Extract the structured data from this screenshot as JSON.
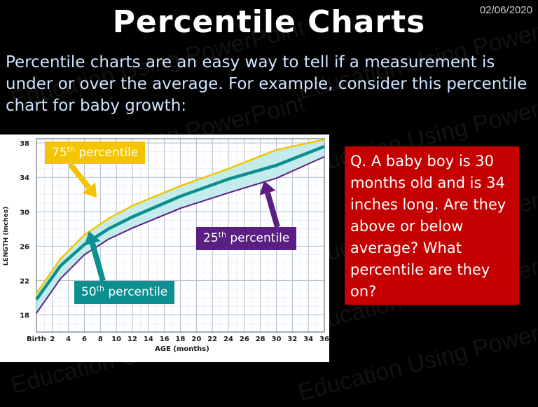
{
  "date": "02/06/2020",
  "title": "Percentile Charts",
  "intro": "Percentile charts are an easy way to tell if a measurement is under or over the average.  For example, consider this percentile chart for baby growth:",
  "watermark": "Education Using PowerPoint",
  "question": "Q. A baby boy is 30 months old and is 34 inches long. Are they above or below average? What percentile are they on?",
  "callouts": {
    "p75": {
      "num": "75",
      "sup": "th",
      "text": " percentile"
    },
    "p50": {
      "num": "50",
      "sup": "th",
      "text": " percentile"
    },
    "p25": {
      "num": "25",
      "sup": "th",
      "text": " percentile"
    }
  },
  "colors": {
    "p75": "#f5c400",
    "p50": "#0e8f8f",
    "p25": "#5b1e83",
    "band": "#bfeaea",
    "question_bg": "#c40000"
  },
  "chart_data": {
    "type": "line",
    "xlabel": "AGE (months)",
    "ylabel": "LENGTH (inches)",
    "x_ticks": [
      "Birth",
      "2",
      "4",
      "6",
      "8",
      "10",
      "12",
      "14",
      "16",
      "18",
      "20",
      "22",
      "24",
      "26",
      "28",
      "30",
      "32",
      "34",
      "36"
    ],
    "y_ticks": [
      "18",
      "22",
      "26",
      "30",
      "34",
      "38"
    ],
    "xlim": [
      0,
      36
    ],
    "ylim": [
      16,
      38.5
    ],
    "grid": true,
    "x": [
      0,
      3,
      6,
      9,
      12,
      18,
      24,
      30,
      36
    ],
    "series": [
      {
        "name": "75th percentile",
        "values": [
          20.5,
          24.5,
          27.3,
          29.2,
          30.7,
          33.0,
          35.0,
          37.2,
          38.4
        ]
      },
      {
        "name": "50th percentile",
        "values": [
          19.8,
          23.7,
          26.2,
          28.0,
          29.4,
          31.8,
          33.8,
          35.4,
          37.6
        ]
      },
      {
        "name": "25th percentile",
        "values": [
          18.2,
          22.2,
          25.0,
          26.8,
          28.1,
          30.4,
          32.2,
          33.9,
          36.4
        ]
      }
    ]
  }
}
